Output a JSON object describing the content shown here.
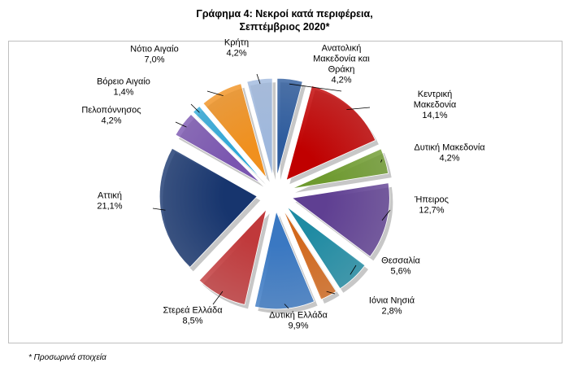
{
  "title_line1": "Γράφημα 4: Νεκροί κατά περιφέρεια,",
  "title_line2": "Σεπτέμβριος 2020*",
  "footnote": "* Προσωρινά στοιχεία",
  "chart_data": {
    "type": "pie",
    "exploded": true,
    "style": "3d-shaded",
    "title": "Γράφημα 4: Νεκροί κατά περιφέρεια, Σεπτέμβριος 2020*",
    "slices": [
      {
        "label": "Ανατολική Μακεδονία και Θράκη",
        "value": 4.2,
        "display": "4,2%",
        "color": "#2e5c9e"
      },
      {
        "label": "Κεντρική Μακεδονία",
        "value": 14.1,
        "display": "14,1%",
        "color": "#c00000"
      },
      {
        "label": "Δυτική Μακεδονία",
        "value": 4.2,
        "display": "4,2%",
        "color": "#6e9a2f"
      },
      {
        "label": "Ήπειρος",
        "value": 12.7,
        "display": "12,7%",
        "color": "#5f3f92"
      },
      {
        "label": "Θεσσαλία",
        "value": 5.6,
        "display": "5,6%",
        "color": "#1f8ba3"
      },
      {
        "label": "Ιόνια Νησιά",
        "value": 2.8,
        "display": "2,8%",
        "color": "#d2691e"
      },
      {
        "label": "Δυτική Ελλάδα",
        "value": 9.9,
        "display": "9,9%",
        "color": "#3a78c2"
      },
      {
        "label": "Στερεά Ελλάδα",
        "value": 8.5,
        "display": "8,5%",
        "color": "#c0393b"
      },
      {
        "label": "Αττική",
        "value": 21.1,
        "display": "21,1%",
        "color": "#17356e"
      },
      {
        "label": "Πελοπόννησος",
        "value": 4.2,
        "display": "4,2%",
        "color": "#7a55b0"
      },
      {
        "label": "Βόρειο Αιγαίο",
        "value": 1.4,
        "display": "1,4%",
        "color": "#2fa8d8"
      },
      {
        "label": "Νότιο Αιγαίο",
        "value": 7.0,
        "display": "7,0%",
        "color": "#f0901e"
      },
      {
        "label": "Κρήτη",
        "value": 4.2,
        "display": "4,2%",
        "color": "#9fb8dd"
      }
    ]
  }
}
